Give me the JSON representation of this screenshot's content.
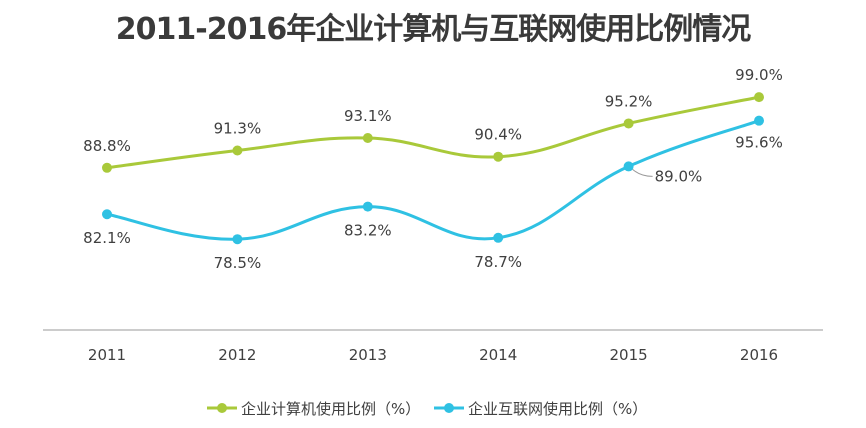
{
  "chart_data": {
    "type": "line",
    "title": "2011-2016年企业计算机与互联网使用比例情况",
    "categories": [
      "2011",
      "2012",
      "2013",
      "2014",
      "2015",
      "2016"
    ],
    "series": [
      {
        "name": "企业计算机使用比例（%）",
        "color": "#a9c93a",
        "values": [
          88.8,
          91.3,
          93.1,
          90.4,
          95.2,
          99.0
        ],
        "labels": [
          "88.8%",
          "91.3%",
          "93.1%",
          "90.4%",
          "95.2%",
          "99.0%"
        ]
      },
      {
        "name": "企业互联网使用比例（%）",
        "color": "#2fc1e3",
        "values": [
          82.1,
          78.5,
          83.2,
          78.7,
          89.0,
          95.6
        ],
        "labels": [
          "82.1%",
          "78.5%",
          "83.2%",
          "78.7%",
          "89.0%",
          "95.6%"
        ]
      }
    ],
    "ylim": [
      65.4,
      101.9
    ],
    "grid": false,
    "legend": "bottom",
    "xlabel": "",
    "ylabel": ""
  }
}
